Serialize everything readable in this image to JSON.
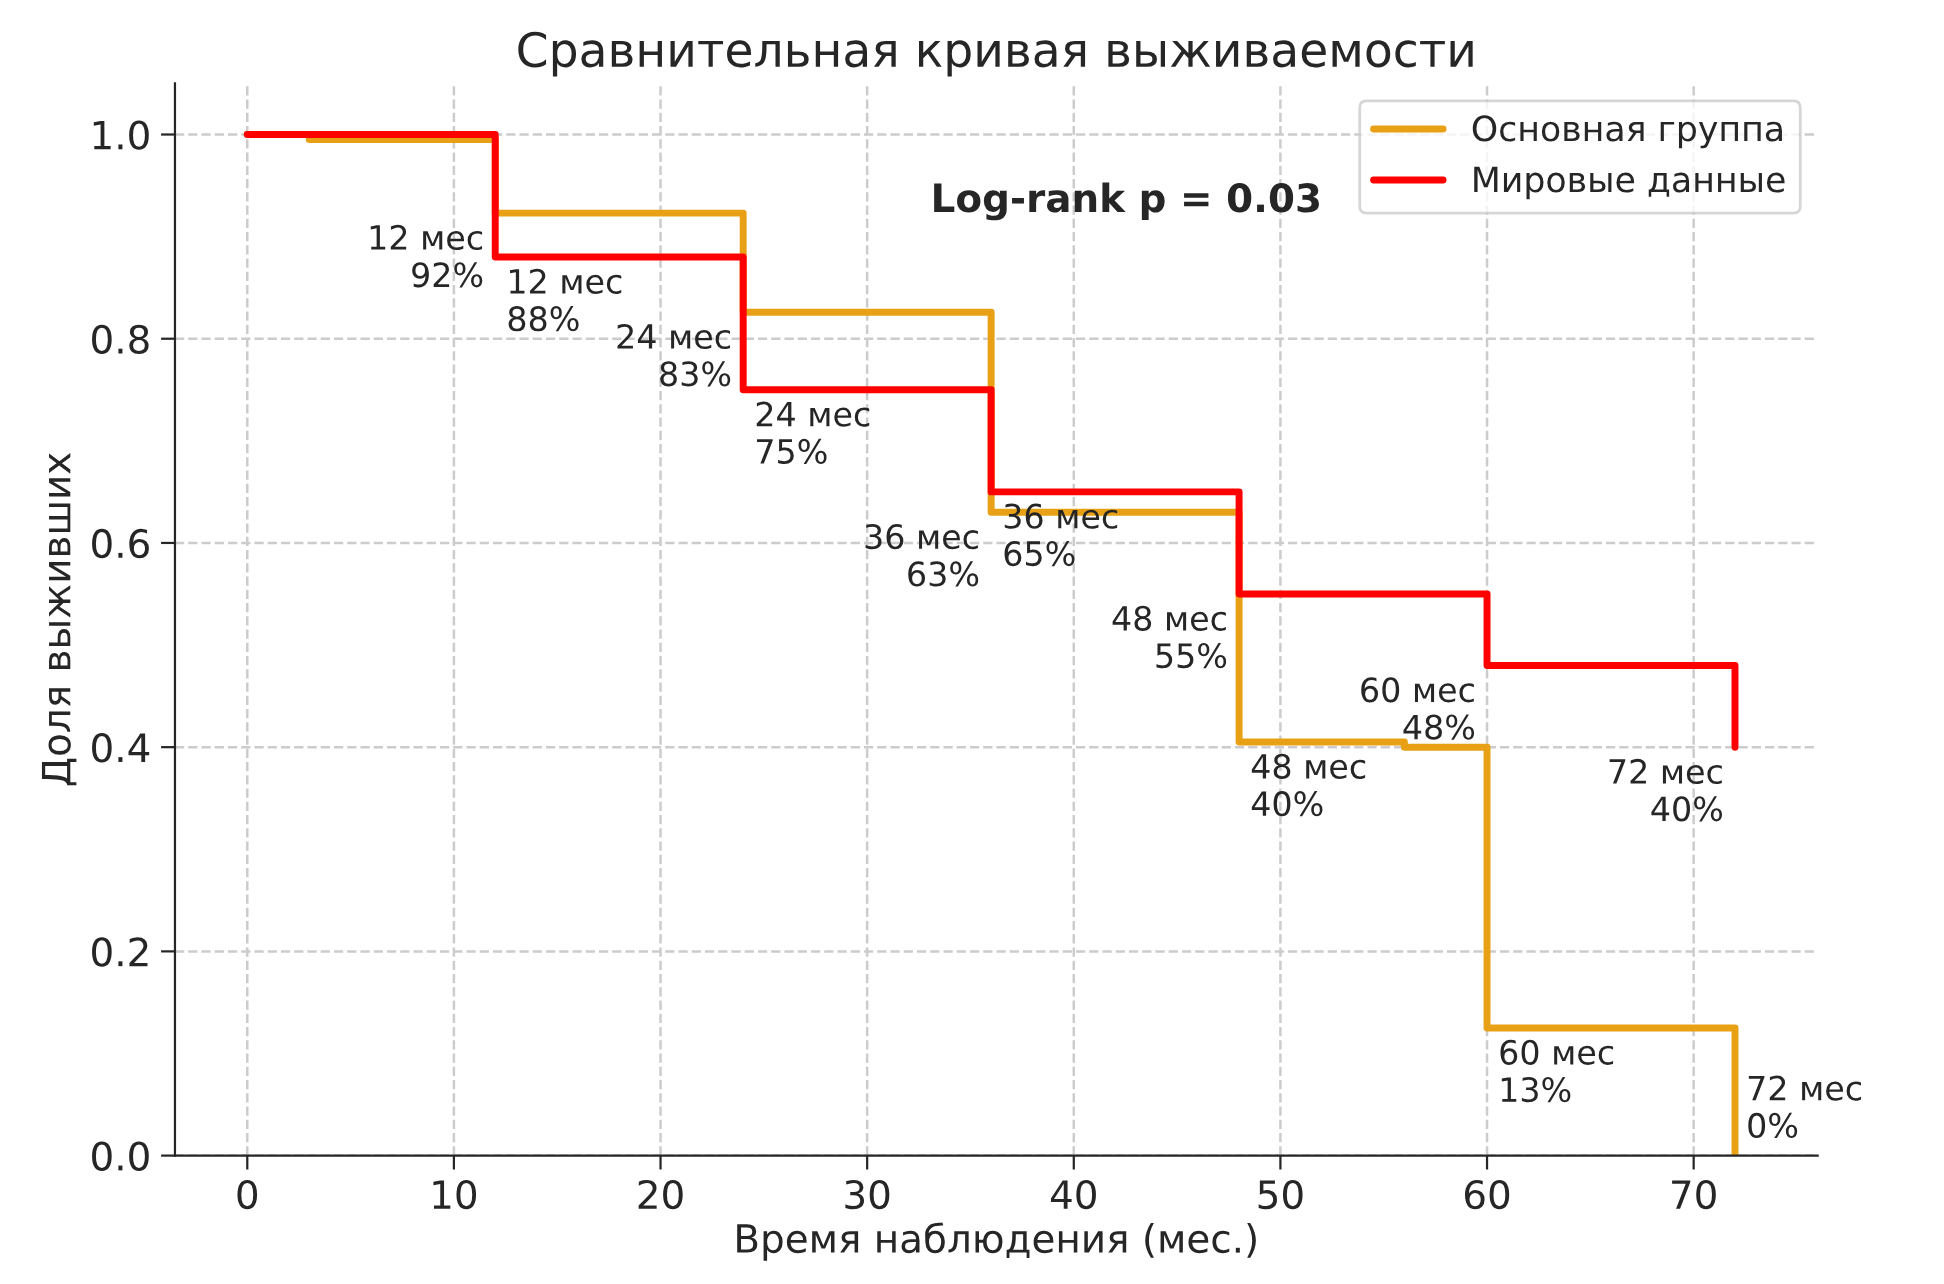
{
  "chart_data": {
    "type": "step",
    "title": "Сравнительная кривая выживаемости",
    "xlabel": "Время наблюдения (мес.)",
    "ylabel": "Доля выживших",
    "xlim": [
      -3.5,
      76
    ],
    "ylim": [
      0,
      1.05
    ],
    "xticks": [
      0,
      10,
      20,
      30,
      40,
      50,
      60,
      70
    ],
    "yticks": [
      {
        "value": 0,
        "label": "0.0"
      },
      {
        "value": 0.2,
        "label": "0.2"
      },
      {
        "value": 0.4,
        "label": "0.4"
      },
      {
        "value": 0.6,
        "label": "0.6"
      },
      {
        "value": 0.8,
        "label": "0.8"
      },
      {
        "value": 1,
        "label": "1.0"
      }
    ],
    "grid": true,
    "legend": "top right",
    "series": [
      {
        "name": "Основная группа",
        "color": "#e8a015",
        "x": [
          0,
          3,
          12,
          24,
          36,
          48,
          56,
          60,
          72,
          72
        ],
        "values": [
          1.0,
          0.995,
          0.923,
          0.826,
          0.63,
          0.405,
          0.4,
          0.125,
          0.125,
          0
        ]
      },
      {
        "name": "Мировые данные",
        "color": "#ff0000",
        "x": [
          0,
          12,
          24,
          36,
          48,
          60,
          72,
          72
        ],
        "values": [
          1.0,
          0.88,
          0.75,
          0.65,
          0.55,
          0.48,
          0.48,
          0.4
        ]
      }
    ],
    "annotations": [
      {
        "text": "12 мес\n92%",
        "x": 12,
        "y": 0.923
      },
      {
        "text": "12 мес\n88%",
        "x": 12,
        "y": 0.88
      },
      {
        "text": "24 мес\n83%",
        "x": 24,
        "y": 0.826
      },
      {
        "text": "24 мес\n75%",
        "x": 24,
        "y": 0.75
      },
      {
        "text": "36 мес\n63%",
        "x": 36,
        "y": 0.63
      },
      {
        "text": "36 мес\n65%",
        "x": 36,
        "y": 0.65
      },
      {
        "text": "48 мес\n55%",
        "x": 48,
        "y": 0.55
      },
      {
        "text": "48 мес\n40%",
        "x": 48,
        "y": 0.405
      },
      {
        "text": "60 мес\n48%",
        "x": 60,
        "y": 0.48
      },
      {
        "text": "60 мес\n13%",
        "x": 60,
        "y": 0.125
      },
      {
        "text": "72 мес\n40%",
        "x": 72,
        "y": 0.4
      },
      {
        "text": "72 мес\n0%",
        "x": 72,
        "y": 0
      },
      "Log-rank p = 0.03"
    ]
  }
}
